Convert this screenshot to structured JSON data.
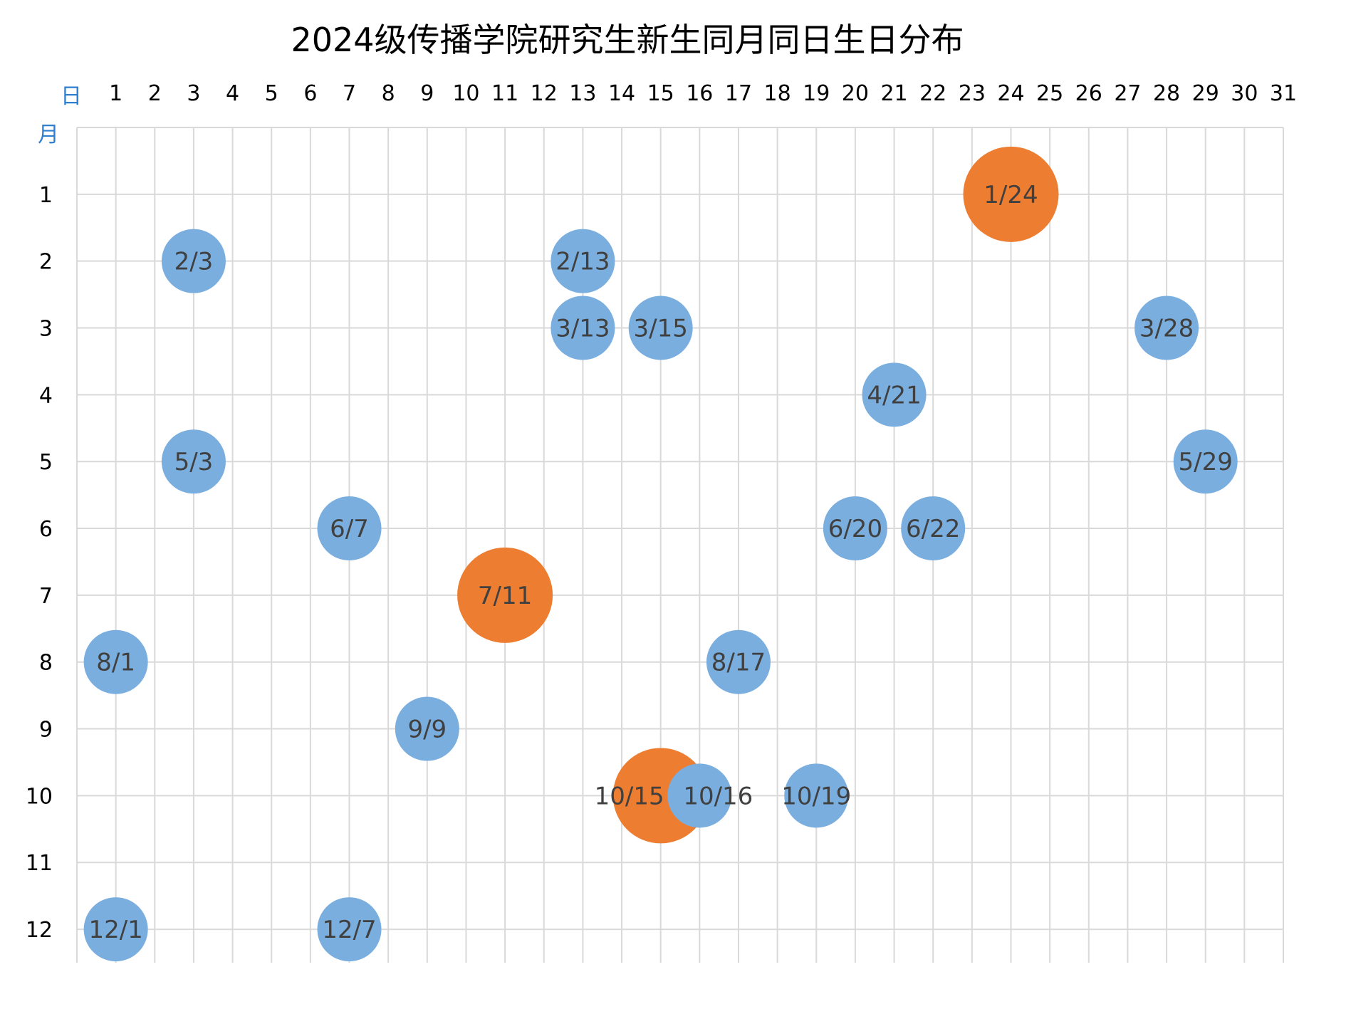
{
  "chart_data": {
    "type": "scatter",
    "title": "2024级传播学院研究生新生同月同日生日分布",
    "xlabel": "日",
    "ylabel": "月",
    "x_ticks": [
      1,
      2,
      3,
      4,
      5,
      6,
      7,
      8,
      9,
      10,
      11,
      12,
      13,
      14,
      15,
      16,
      17,
      18,
      19,
      20,
      21,
      22,
      23,
      24,
      25,
      26,
      27,
      28,
      29,
      30,
      31
    ],
    "y_ticks": [
      1,
      2,
      3,
      4,
      5,
      6,
      7,
      8,
      9,
      10,
      11,
      12
    ],
    "xlim": [
      0,
      31
    ],
    "ylim": [
      0,
      12.5
    ],
    "y_reversed": true,
    "grid": true,
    "colors": {
      "single": "#7aaedf",
      "double": "#ed7d31"
    },
    "points": [
      {
        "label": "1/24",
        "month": 1,
        "day": 24,
        "size": 2
      },
      {
        "label": "2/3",
        "month": 2,
        "day": 3,
        "size": 1
      },
      {
        "label": "2/13",
        "month": 2,
        "day": 13,
        "size": 1
      },
      {
        "label": "3/13",
        "month": 3,
        "day": 13,
        "size": 1
      },
      {
        "label": "3/15",
        "month": 3,
        "day": 15,
        "size": 1
      },
      {
        "label": "3/28",
        "month": 3,
        "day": 28,
        "size": 1
      },
      {
        "label": "4/21",
        "month": 4,
        "day": 21,
        "size": 1
      },
      {
        "label": "5/3",
        "month": 5,
        "day": 3,
        "size": 1
      },
      {
        "label": "5/29",
        "month": 5,
        "day": 29,
        "size": 1
      },
      {
        "label": "6/7",
        "month": 6,
        "day": 7,
        "size": 1
      },
      {
        "label": "6/20",
        "month": 6,
        "day": 20,
        "size": 1
      },
      {
        "label": "6/22",
        "month": 6,
        "day": 22,
        "size": 1
      },
      {
        "label": "7/11",
        "month": 7,
        "day": 11,
        "size": 2
      },
      {
        "label": "8/1",
        "month": 8,
        "day": 1,
        "size": 1
      },
      {
        "label": "8/17",
        "month": 8,
        "day": 17,
        "size": 1
      },
      {
        "label": "9/9",
        "month": 9,
        "day": 9,
        "size": 1
      },
      {
        "label": "10/15",
        "month": 10,
        "day": 15,
        "size": 2
      },
      {
        "label": "10/16",
        "month": 10,
        "day": 16,
        "size": 1
      },
      {
        "label": "10/19",
        "month": 10,
        "day": 19,
        "size": 1
      },
      {
        "label": "12/1",
        "month": 12,
        "day": 1,
        "size": 1
      },
      {
        "label": "12/7",
        "month": 12,
        "day": 7,
        "size": 1
      }
    ]
  }
}
